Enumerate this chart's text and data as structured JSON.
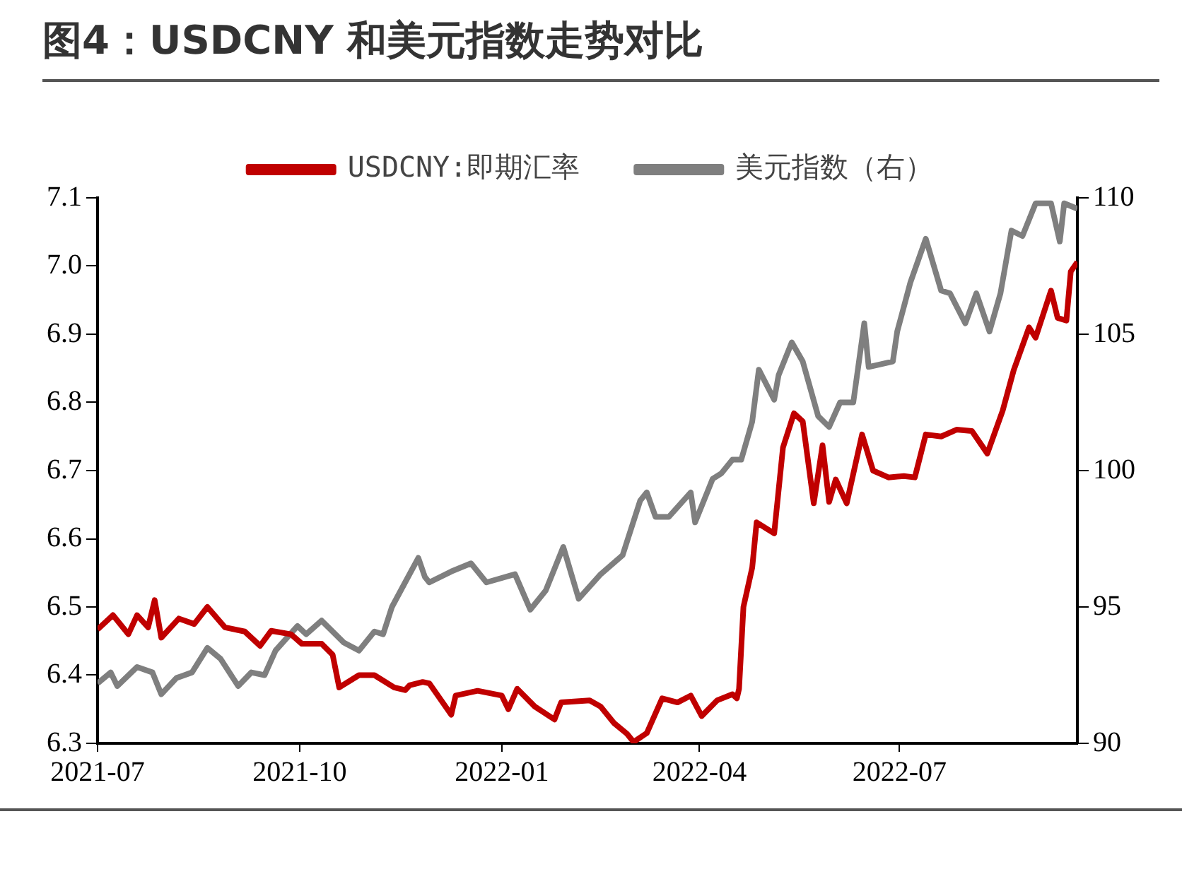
{
  "chart_data": {
    "type": "line",
    "title": "图4：USDCNY 和美元指数走势对比",
    "legend": "top",
    "xlim": [
      "2021-07-01",
      "2022-09-20"
    ],
    "xticks": [
      "2021-07",
      "2021-10",
      "2022-01",
      "2022-04",
      "2022-07"
    ],
    "ylim": [
      6.3,
      7.1
    ],
    "yticks": [
      {
        "value": 6.3,
        "label": "6.3"
      },
      {
        "value": 6.4,
        "label": "6.4"
      },
      {
        "value": 6.5,
        "label": "6.5"
      },
      {
        "value": 6.6,
        "label": "6.6"
      },
      {
        "value": 6.7,
        "label": "6.7"
      },
      {
        "value": 6.8,
        "label": "6.8"
      },
      {
        "value": 6.9,
        "label": "6.9"
      },
      {
        "value": 7,
        "label": "7.0"
      },
      {
        "value": 7.1,
        "label": "7.1"
      }
    ],
    "y2lim": [
      90,
      110
    ],
    "y2ticks": [
      90,
      95,
      100,
      105,
      110
    ],
    "series": [
      {
        "name": "USDCNY:即期汇率",
        "color": "#c00000",
        "x": [
          "2021-07-01",
          "2021-07-08",
          "2021-07-15",
          "2021-07-19",
          "2021-07-24",
          "2021-07-27",
          "2021-07-30",
          "2021-08-07",
          "2021-08-14",
          "2021-08-20",
          "2021-08-28",
          "2021-09-06",
          "2021-09-13",
          "2021-09-18",
          "2021-09-27",
          "2021-10-02",
          "2021-10-11",
          "2021-10-16",
          "2021-10-19",
          "2021-10-28",
          "2021-11-04",
          "2021-11-13",
          "2021-11-18",
          "2021-11-20",
          "2021-11-26",
          "2021-11-29",
          "2021-12-09",
          "2021-12-11",
          "2021-12-21",
          "2022-01-01",
          "2022-01-04",
          "2022-01-08",
          "2022-01-16",
          "2022-01-25",
          "2022-01-28",
          "2022-02-10",
          "2022-02-15",
          "2022-02-21",
          "2022-02-27",
          "2022-03-02",
          "2022-03-08",
          "2022-03-15",
          "2022-03-22",
          "2022-03-28",
          "2022-04-02",
          "2022-04-09",
          "2022-04-16",
          "2022-04-18",
          "2022-04-19",
          "2022-04-21",
          "2022-04-25",
          "2022-04-27",
          "2022-05-05",
          "2022-05-09",
          "2022-05-14",
          "2022-05-18",
          "2022-05-23",
          "2022-05-27",
          "2022-05-30",
          "2022-06-02",
          "2022-06-07",
          "2022-06-14",
          "2022-06-19",
          "2022-06-26",
          "2022-07-03",
          "2022-07-08",
          "2022-07-13",
          "2022-07-20",
          "2022-07-27",
          "2022-08-03",
          "2022-08-10",
          "2022-08-17",
          "2022-08-22",
          "2022-08-29",
          "2022-09-01",
          "2022-09-08",
          "2022-09-11",
          "2022-09-15",
          "2022-09-17",
          "2022-09-20"
        ],
        "values": [
          6.467,
          6.488,
          6.46,
          6.488,
          6.47,
          6.51,
          6.455,
          6.483,
          6.475,
          6.5,
          6.47,
          6.464,
          6.443,
          6.465,
          6.46,
          6.446,
          6.446,
          6.43,
          6.382,
          6.4,
          6.4,
          6.382,
          6.378,
          6.385,
          6.39,
          6.388,
          6.342,
          6.37,
          6.377,
          6.37,
          6.35,
          6.38,
          6.354,
          6.335,
          6.36,
          6.363,
          6.354,
          6.33,
          6.314,
          6.302,
          6.315,
          6.366,
          6.36,
          6.37,
          6.34,
          6.363,
          6.372,
          6.366,
          6.38,
          6.5,
          6.558,
          6.624,
          6.608,
          6.734,
          6.784,
          6.772,
          6.652,
          6.737,
          6.654,
          6.687,
          6.652,
          6.753,
          6.7,
          6.69,
          6.692,
          6.69,
          6.753,
          6.75,
          6.76,
          6.758,
          6.725,
          6.788,
          6.847,
          6.91,
          6.895,
          6.964,
          6.924,
          6.92,
          6.992,
          7.006
        ]
      },
      {
        "name": "美元指数（右）",
        "color": "#7f7f7f",
        "axis": "y2",
        "x": [
          "2021-07-01",
          "2021-07-07",
          "2021-07-10",
          "2021-07-19",
          "2021-07-26",
          "2021-07-30",
          "2021-08-06",
          "2021-08-13",
          "2021-08-20",
          "2021-08-26",
          "2021-09-03",
          "2021-09-09",
          "2021-09-15",
          "2021-09-20",
          "2021-09-30",
          "2021-10-04",
          "2021-10-11",
          "2021-10-21",
          "2021-10-28",
          "2021-11-04",
          "2021-11-08",
          "2021-11-12",
          "2021-11-18",
          "2021-11-24",
          "2021-11-27",
          "2021-11-29",
          "2021-12-09",
          "2021-12-18",
          "2021-12-25",
          "2022-01-07",
          "2022-01-14",
          "2022-01-21",
          "2022-01-29",
          "2022-02-05",
          "2022-02-15",
          "2022-02-25",
          "2022-03-05",
          "2022-03-08",
          "2022-03-12",
          "2022-03-18",
          "2022-03-28",
          "2022-03-30",
          "2022-04-07",
          "2022-04-11",
          "2022-04-16",
          "2022-04-20",
          "2022-04-25",
          "2022-04-28",
          "2022-05-05",
          "2022-05-07",
          "2022-05-13",
          "2022-05-18",
          "2022-05-25",
          "2022-05-30",
          "2022-06-04",
          "2022-06-10",
          "2022-06-15",
          "2022-06-17",
          "2022-06-28",
          "2022-06-30",
          "2022-07-06",
          "2022-07-13",
          "2022-07-20",
          "2022-07-24",
          "2022-07-31",
          "2022-08-05",
          "2022-08-11",
          "2022-08-16",
          "2022-08-21",
          "2022-08-26",
          "2022-09-01",
          "2022-09-08",
          "2022-09-12",
          "2022-09-14",
          "2022-09-20"
        ],
        "values": [
          92.2,
          92.6,
          92.1,
          92.8,
          92.6,
          91.8,
          92.4,
          92.6,
          93.5,
          93.1,
          92.1,
          92.6,
          92.5,
          93.4,
          94.3,
          94,
          94.5,
          93.7,
          93.4,
          94.1,
          94,
          95,
          95.9,
          96.8,
          96.1,
          95.9,
          96.3,
          96.6,
          95.9,
          96.2,
          94.9,
          95.6,
          97.2,
          95.3,
          96.2,
          96.9,
          98.9,
          99.2,
          98.3,
          98.3,
          99.2,
          98.1,
          99.7,
          99.9,
          100.4,
          100.4,
          101.8,
          103.7,
          102.6,
          103.5,
          104.7,
          104,
          102,
          101.6,
          102.5,
          102.5,
          105.4,
          103.8,
          104,
          105.1,
          106.9,
          108.5,
          106.6,
          106.5,
          105.4,
          106.5,
          105.1,
          106.5,
          108.8,
          108.6,
          109.8,
          109.8,
          108.4,
          109.8,
          109.6
        ]
      }
    ]
  }
}
